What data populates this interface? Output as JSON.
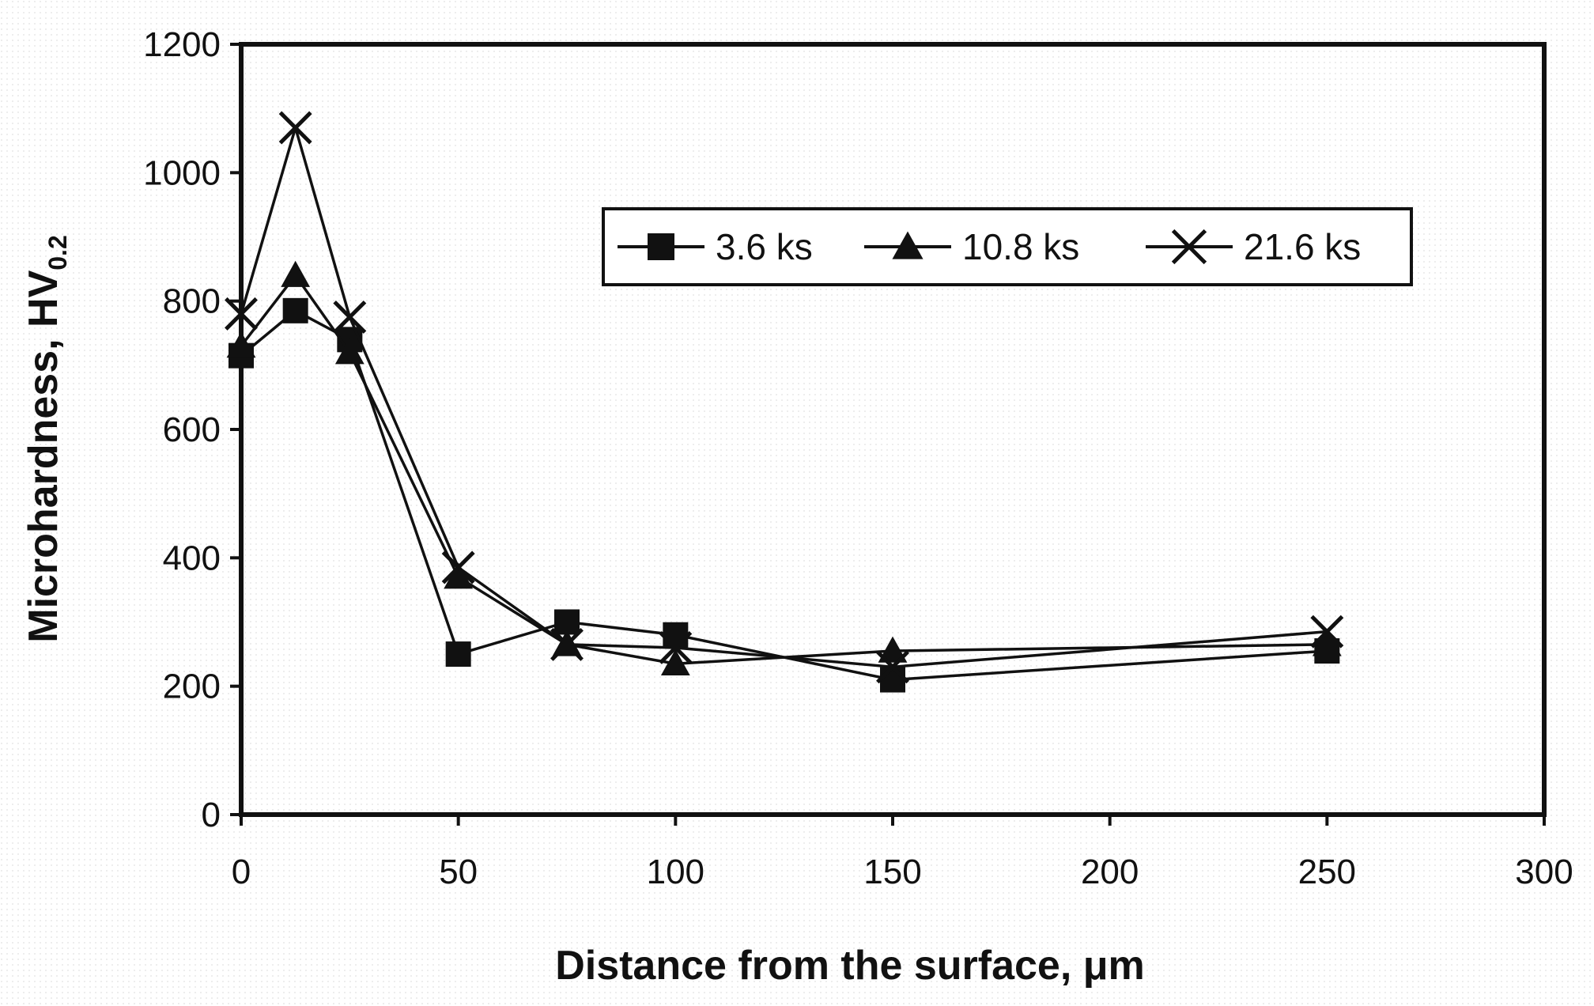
{
  "chart_data": {
    "type": "line",
    "title": "",
    "xlabel": "Distance from the surface, μm",
    "ylabel": {
      "main": "Microhardness, HV",
      "subscript": "0.2"
    },
    "xlim": [
      0,
      300
    ],
    "ylim": [
      0,
      1200
    ],
    "xticks": [
      0,
      50,
      100,
      150,
      200,
      250,
      300
    ],
    "yticks": [
      0,
      200,
      400,
      600,
      800,
      1000,
      1200
    ],
    "grid": false,
    "legend_position": "top-right",
    "series": [
      {
        "name": "3.6 ks",
        "marker": "square",
        "x": [
          0,
          12.5,
          25,
          50,
          75,
          100,
          150,
          250
        ],
        "values": [
          715,
          785,
          740,
          250,
          300,
          280,
          210,
          255
        ]
      },
      {
        "name": "10.8 ks",
        "marker": "triangle",
        "x": [
          0,
          12.5,
          25,
          50,
          75,
          100,
          150,
          250
        ],
        "values": [
          730,
          840,
          720,
          370,
          265,
          235,
          255,
          265
        ]
      },
      {
        "name": "21.6 ks",
        "marker": "x",
        "x": [
          0,
          12.5,
          25,
          50,
          75,
          100,
          150,
          250
        ],
        "values": [
          780,
          1070,
          775,
          385,
          265,
          260,
          230,
          285
        ]
      }
    ],
    "colors": {
      "line": "#111111",
      "frame": "#111111",
      "background": "#ffffff",
      "dots": "#c8c8c8"
    }
  }
}
